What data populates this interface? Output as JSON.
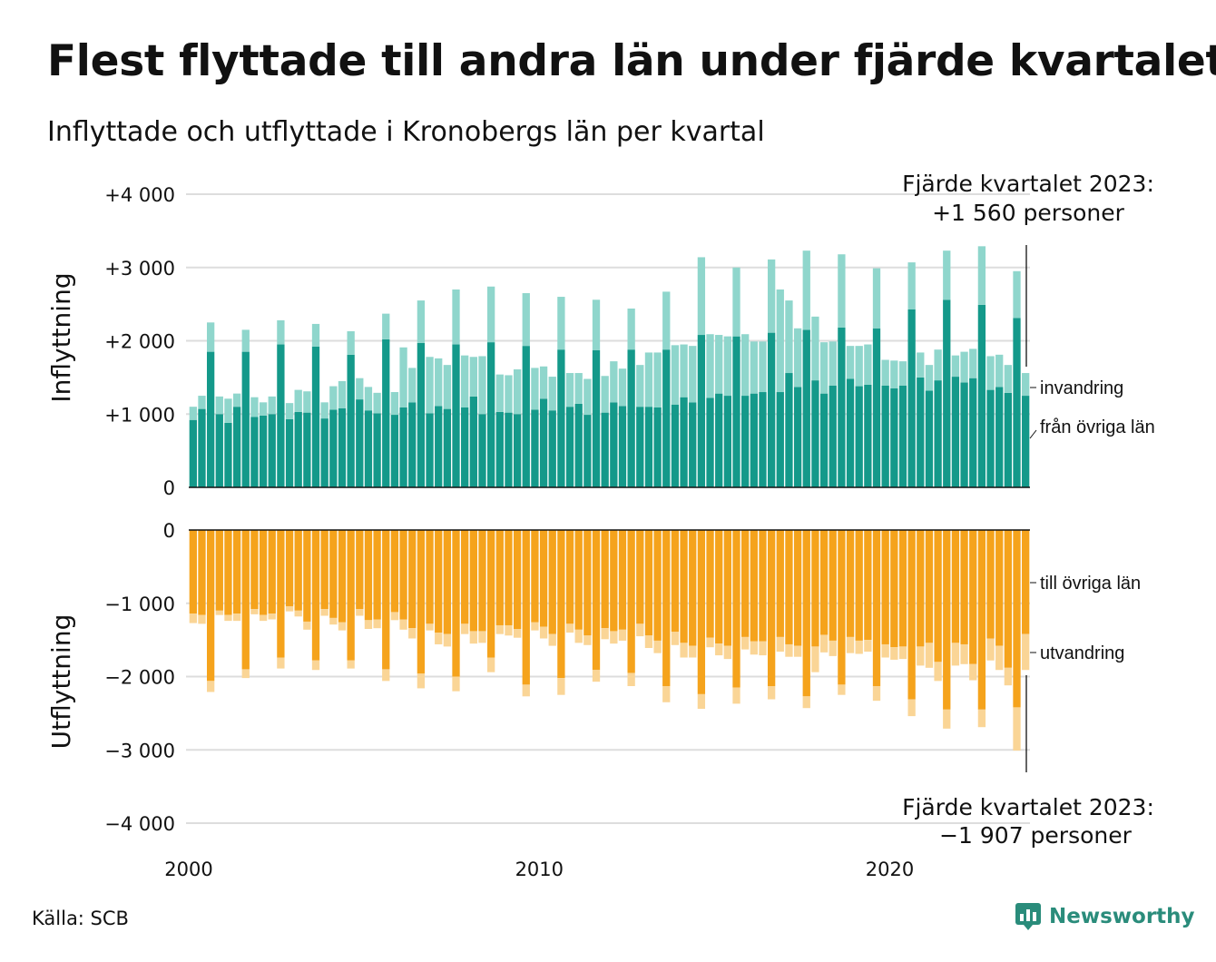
{
  "header": {
    "title": "Flest flyttade till andra län under fjärde kvartalet",
    "subtitle": "Inflyttade och utflyttade i Kronobergs län per kvartal"
  },
  "footer": {
    "source": "Källa: SCB",
    "brand": "Newsworthy"
  },
  "colors": {
    "from_counties": "#14998a",
    "immigration": "#8fd6cc",
    "to_counties": "#f5a31c",
    "emigration": "#fad596",
    "grid": "#dddddd"
  },
  "chart_data": [
    {
      "type": "bar",
      "stacked": true,
      "panel": "top",
      "ylabel": "Inflyttning",
      "ylim": [
        0,
        4000
      ],
      "yticks": [
        0,
        1000,
        2000,
        3000,
        4000
      ],
      "ytick_labels": [
        "0",
        "+1 000",
        "+2 000",
        "+3 000",
        "+4 000"
      ],
      "x_start": 2000,
      "x_step": 0.25,
      "xticks": [
        2000,
        2010,
        2020
      ],
      "xtick_labels": [
        "2000",
        "2010",
        "2020"
      ],
      "series": [
        {
          "name": "från övriga län",
          "values": [
            920,
            1070,
            1850,
            1000,
            880,
            1100,
            1850,
            960,
            980,
            1000,
            1950,
            930,
            1030,
            1020,
            1920,
            940,
            1060,
            1080,
            1810,
            1200,
            1050,
            1010,
            2020,
            990,
            1090,
            1160,
            1970,
            1010,
            1110,
            1070,
            1950,
            1090,
            1240,
            1000,
            1980,
            1030,
            1020,
            1000,
            1930,
            1060,
            1210,
            1050,
            1880,
            1100,
            1140,
            990,
            1870,
            1020,
            1160,
            1110,
            1880,
            1100,
            1100,
            1090,
            1880,
            1130,
            1230,
            1160,
            2080,
            1220,
            1280,
            1250,
            2060,
            1250,
            1280,
            1300,
            2110,
            1300,
            1560,
            1370,
            2150,
            1460,
            1280,
            1390,
            2180,
            1480,
            1380,
            1400,
            2170,
            1390,
            1350,
            1390,
            2430,
            1500,
            1320,
            1460,
            2560,
            1510,
            1430,
            1490,
            2490,
            1330,
            1370,
            1290,
            2310,
            1250
          ]
        },
        {
          "name": "invandring",
          "values": [
            180,
            180,
            400,
            240,
            330,
            180,
            300,
            270,
            180,
            240,
            330,
            220,
            300,
            290,
            310,
            220,
            320,
            370,
            320,
            290,
            320,
            280,
            350,
            310,
            820,
            470,
            580,
            770,
            650,
            600,
            750,
            710,
            540,
            790,
            760,
            510,
            510,
            610,
            720,
            570,
            440,
            460,
            720,
            460,
            420,
            490,
            690,
            500,
            560,
            510,
            560,
            570,
            740,
            750,
            790,
            810,
            720,
            770,
            1060,
            870,
            800,
            810,
            940,
            840,
            710,
            690,
            1000,
            1400,
            990,
            800,
            1080,
            870,
            700,
            600,
            1000,
            450,
            550,
            550,
            820,
            350,
            380,
            330,
            640,
            340,
            350,
            420,
            670,
            290,
            420,
            400,
            800,
            460,
            440,
            380,
            640,
            310
          ]
        }
      ]
    },
    {
      "type": "bar",
      "stacked": true,
      "panel": "bottom",
      "ylabel": "Utflyttning",
      "ylim": [
        -4000,
        0
      ],
      "yticks": [
        -4000,
        -3000,
        -2000,
        -1000,
        0
      ],
      "ytick_labels": [
        "−4 000",
        "−3 000",
        "−2 000",
        "−1 000",
        "0"
      ],
      "x_start": 2000,
      "x_step": 0.25,
      "series": [
        {
          "name": "till övriga län",
          "values": [
            -1140,
            -1160,
            -2060,
            -1100,
            -1160,
            -1140,
            -1900,
            -1080,
            -1160,
            -1140,
            -1740,
            -1040,
            -1100,
            -1250,
            -1780,
            -1080,
            -1200,
            -1260,
            -1780,
            -1080,
            -1230,
            -1220,
            -1900,
            -1120,
            -1220,
            -1340,
            -1960,
            -1280,
            -1400,
            -1420,
            -2000,
            -1280,
            -1380,
            -1380,
            -1740,
            -1300,
            -1300,
            -1350,
            -2110,
            -1260,
            -1320,
            -1420,
            -2020,
            -1280,
            -1360,
            -1440,
            -1910,
            -1340,
            -1380,
            -1360,
            -1950,
            -1280,
            -1440,
            -1510,
            -2130,
            -1390,
            -1540,
            -1580,
            -2240,
            -1470,
            -1550,
            -1580,
            -2150,
            -1460,
            -1520,
            -1520,
            -2130,
            -1460,
            -1560,
            -1580,
            -2270,
            -1590,
            -1430,
            -1510,
            -2110,
            -1460,
            -1510,
            -1500,
            -2130,
            -1560,
            -1600,
            -1590,
            -2310,
            -1590,
            -1540,
            -1800,
            -2450,
            -1540,
            -1560,
            -1830,
            -2450,
            -1480,
            -1580,
            -1880,
            -2420,
            -1420
          ]
        },
        {
          "name": "utvandring",
          "values": [
            -130,
            -120,
            -150,
            -60,
            -80,
            -100,
            -120,
            -70,
            -80,
            -80,
            -150,
            -70,
            -80,
            -110,
            -130,
            -90,
            -90,
            -110,
            -110,
            -90,
            -120,
            -120,
            -160,
            -110,
            -140,
            -140,
            -200,
            -90,
            -160,
            -170,
            -200,
            -140,
            -170,
            -160,
            -200,
            -120,
            -140,
            -120,
            -160,
            -110,
            -160,
            -160,
            -230,
            -120,
            -180,
            -130,
            -160,
            -150,
            -170,
            -150,
            -180,
            -170,
            -170,
            -170,
            -220,
            -180,
            -200,
            -160,
            -200,
            -130,
            -160,
            -180,
            -220,
            -170,
            -180,
            -190,
            -180,
            -200,
            -170,
            -150,
            -160,
            -350,
            -240,
            -210,
            -140,
            -220,
            -180,
            -160,
            -200,
            -180,
            -170,
            -170,
            -230,
            -260,
            -340,
            -260,
            -260,
            -310,
            -270,
            -220,
            -240,
            -300,
            -330,
            -240,
            -590,
            -490
          ]
        }
      ]
    }
  ],
  "annotations": {
    "top_line1": "Fjärde kvartalet 2023:",
    "top_line2": "+1 560 personer",
    "bottom_line1": "Fjärde kvartalet 2023:",
    "bottom_line2": "−1 907 personer",
    "label_immigration": "invandring",
    "label_from_counties": "från övriga län",
    "label_to_counties": "till övriga län",
    "label_emigration": "utvandring"
  }
}
